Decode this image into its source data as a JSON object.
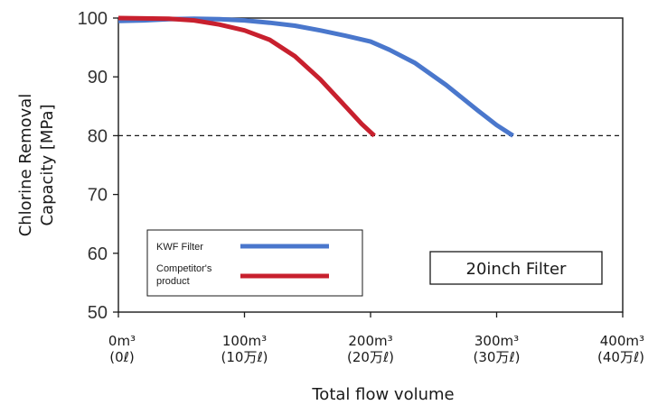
{
  "chart_data": {
    "type": "line",
    "ylabel": "Chlorine Removal Capacity [MPa]",
    "ylabel_lines": [
      "Chlorine Removal",
      "Capacity [MPa]"
    ],
    "xlabel": "Total flow volume",
    "ylim": [
      50,
      100
    ],
    "yticks": [
      "100",
      "90",
      "80",
      "70",
      "60",
      "50"
    ],
    "xlim": [
      0,
      400
    ],
    "xticks": [
      {
        "label": "0m³",
        "sub": "(0ℓ)"
      },
      {
        "label": "100m³",
        "sub": "(10万ℓ)"
      },
      {
        "label": "200m³",
        "sub": "(20万ℓ)"
      },
      {
        "label": "300m³",
        "sub": "(30万ℓ)"
      },
      {
        "label": "400m³",
        "sub": "(40万ℓ)"
      }
    ],
    "series": [
      {
        "name": "KWF Filter",
        "color": "#4a77cc",
        "x": [
          0,
          20,
          40,
          60,
          80,
          100,
          120,
          140,
          160,
          180,
          200,
          215,
          235,
          260,
          285,
          300,
          313
        ],
        "y": [
          99.5,
          99.6,
          99.8,
          99.9,
          99.8,
          99.6,
          99.2,
          98.7,
          97.9,
          97.0,
          96.0,
          94.6,
          92.4,
          88.6,
          84.3,
          81.8,
          80.0
        ]
      },
      {
        "name": "Competitor's product",
        "legend_lines": [
          "Competitor's",
          "product"
        ],
        "color": "#c8202e",
        "x": [
          0,
          40,
          60,
          80,
          100,
          120,
          140,
          160,
          180,
          193,
          203
        ],
        "y": [
          100,
          99.9,
          99.6,
          98.9,
          97.9,
          96.3,
          93.5,
          89.6,
          85.0,
          82.0,
          80.0
        ]
      }
    ],
    "reference_line": {
      "y": 80,
      "style": "dashed",
      "color": "#1a1a1a"
    },
    "annotation": "20inch Filter",
    "legend_position": "bottom-left",
    "grid": false
  }
}
